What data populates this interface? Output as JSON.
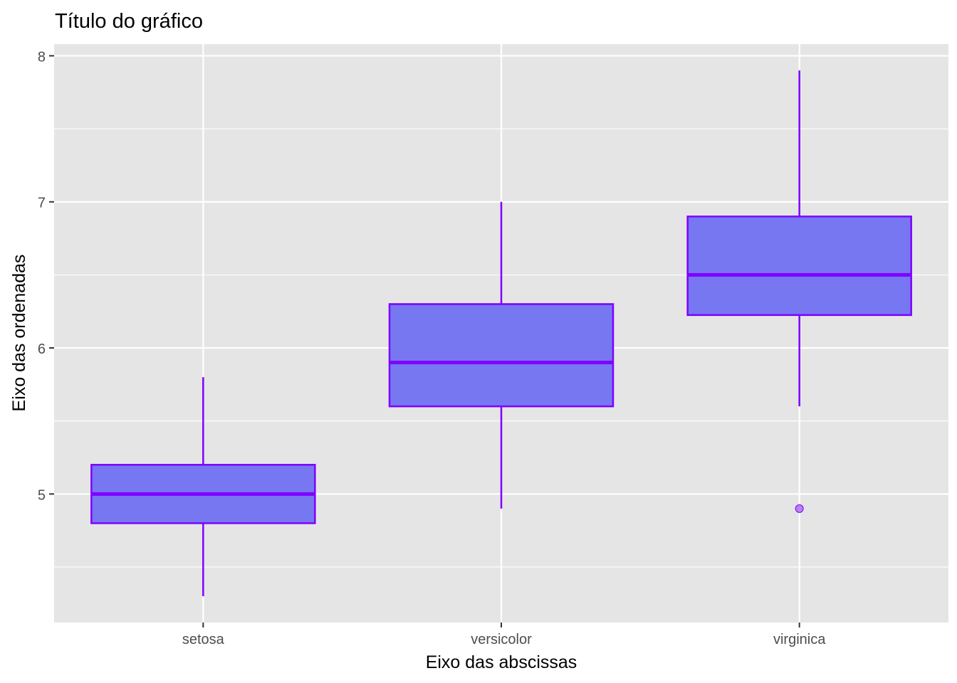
{
  "chart_data": {
    "type": "box",
    "title": "Título do gráfico",
    "xlabel": "Eixo das abscissas",
    "ylabel": "Eixo das ordenadas",
    "categories": [
      "setosa",
      "versicolor",
      "virginica"
    ],
    "boxes": [
      {
        "category": "setosa",
        "whisker_low": 4.3,
        "q1": 4.8,
        "median": 5.0,
        "q3": 5.2,
        "whisker_high": 5.8,
        "outliers": []
      },
      {
        "category": "versicolor",
        "whisker_low": 4.9,
        "q1": 5.6,
        "median": 5.9,
        "q3": 6.3,
        "whisker_high": 7.0,
        "outliers": []
      },
      {
        "category": "virginica",
        "whisker_low": 5.6,
        "q1": 6.225,
        "median": 6.5,
        "q3": 6.9,
        "whisker_high": 7.9,
        "outliers": [
          4.9
        ]
      }
    ],
    "y_ticks": [
      5,
      6,
      7,
      8
    ],
    "ylim": [
      4.12,
      8.08
    ],
    "grid": true,
    "colors": {
      "panel_background": "#e5e5e5",
      "grid": "#ffffff",
      "box_fill": "#7474f2",
      "box_outline": "#7f00ff",
      "outlier": "#b36ef0",
      "axis_text": "#4d4d4d",
      "title_text": "#000000"
    }
  }
}
